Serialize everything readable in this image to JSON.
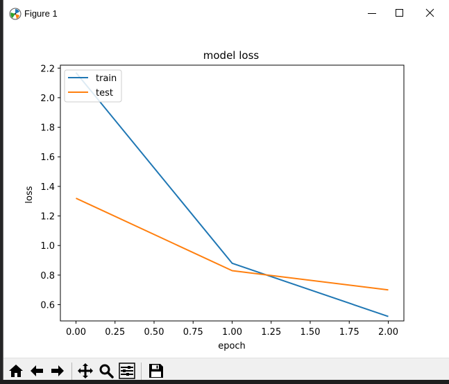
{
  "window": {
    "title": "Figure 1",
    "icons": {
      "app": "matplotlib-logo-icon",
      "minimize": "minimize-icon",
      "maximize": "maximize-icon",
      "close": "close-icon"
    }
  },
  "toolbar": {
    "buttons": [
      {
        "name": "home-button",
        "icon": "home-icon"
      },
      {
        "name": "back-button",
        "icon": "arrow-left-icon"
      },
      {
        "name": "forward-button",
        "icon": "arrow-right-icon"
      },
      {
        "name": "pan-button",
        "icon": "move-icon"
      },
      {
        "name": "zoom-button",
        "icon": "search-icon"
      },
      {
        "name": "configure-subplots-button",
        "icon": "sliders-icon"
      },
      {
        "name": "save-button",
        "icon": "floppy-disk-icon"
      }
    ]
  },
  "chart_data": {
    "type": "line",
    "title": "model loss",
    "xlabel": "epoch",
    "ylabel": "loss",
    "x": [
      0,
      1,
      2
    ],
    "xlim": [
      -0.1,
      2.1
    ],
    "ylim": [
      0.49,
      2.22
    ],
    "xticks": [
      "0.00",
      "0.25",
      "0.50",
      "0.75",
      "1.00",
      "1.25",
      "1.50",
      "1.75",
      "2.00"
    ],
    "yticks": [
      "0.6",
      "0.8",
      "1.0",
      "1.2",
      "1.4",
      "1.6",
      "1.8",
      "2.0",
      "2.2"
    ],
    "legend_position": "upper-left",
    "grid": false,
    "series": [
      {
        "name": "train",
        "color": "#1f77b4",
        "values": [
          2.17,
          0.88,
          0.52
        ]
      },
      {
        "name": "test",
        "color": "#ff7f0e",
        "values": [
          1.32,
          0.83,
          0.7
        ]
      }
    ]
  }
}
